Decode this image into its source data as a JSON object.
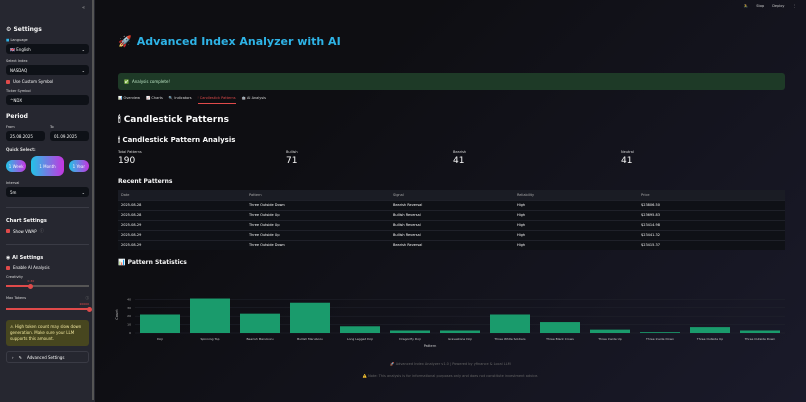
{
  "sidebar": {
    "settings_title": "Settings",
    "language_label": "Language",
    "language_value": "🇬🇧 English",
    "index_label": "Select Index",
    "index_value": "NASDAQ",
    "custom_symbol_label": "Use Custom Symbol",
    "ticker_label": "Ticker Symbol",
    "ticker_value": "^NDX",
    "period_title": "Period",
    "from_label": "From",
    "from_value": "25.08.2025",
    "to_label": "To",
    "to_value": "01.09.2025",
    "quick_select_label": "Quick Select:",
    "quick_buttons": [
      "1 Week",
      "1 Month",
      "1 Year"
    ],
    "interval_label": "Interval",
    "interval_value": "5m",
    "chart_settings_title": "Chart Settings",
    "show_vwap_label": "Show VWAP",
    "ai_settings_title": "AI Settings",
    "enable_ai_label": "Enable AI Analysis",
    "creativity_label": "Creativity",
    "creativity_value": "0.30",
    "creativity_fraction": 0.3,
    "max_tokens_label": "Max Tokens",
    "max_tokens_value": "20000",
    "max_tokens_fraction": 1.0,
    "warning_text": "High token count may slow down generation. Make sure your LLM supports this amount.",
    "advanced_settings_label": "Advanced Settings"
  },
  "topbar": {
    "stop_label": "Stop",
    "deploy_label": "Deploy"
  },
  "header": {
    "title": "Advanced Index Analyzer with AI"
  },
  "success_message": "Analysis complete!",
  "tabs": [
    {
      "label": "📊 Overview"
    },
    {
      "label": "📈 Charts"
    },
    {
      "label": "🔍 Indicators"
    },
    {
      "label": "🕯 Candlestick Patterns",
      "active": true
    },
    {
      "label": "🤖 AI Analysis"
    }
  ],
  "section_title": "Candlestick Patterns",
  "subsection_title": "Candlestick Pattern Analysis",
  "metrics": [
    {
      "label": "Total Patterns",
      "value": "190"
    },
    {
      "label": "Bullish",
      "value": "71"
    },
    {
      "label": "Bearish",
      "value": "41"
    },
    {
      "label": "Neutral",
      "value": "41"
    }
  ],
  "recent_title": "Recent Patterns",
  "table": {
    "headers": [
      "Date",
      "Pattern",
      "Signal",
      "Reliability",
      "Price"
    ],
    "rows": [
      [
        "2025-08-28",
        "Three Outside Down",
        "Bearish Reversal",
        "High",
        "$23806.50"
      ],
      [
        "2025-08-28",
        "Three Outside Up",
        "Bullish Reversal",
        "High",
        "$23695.83"
      ],
      [
        "2025-08-29",
        "Three Outside Up",
        "Bullish Reversal",
        "High",
        "$23414.98"
      ],
      [
        "2025-08-29",
        "Three Outside Up",
        "Bullish Reversal",
        "High",
        "$23441.32"
      ],
      [
        "2025-08-29",
        "Three Outside Down",
        "Bearish Reversal",
        "High",
        "$23415.37"
      ]
    ]
  },
  "stats_title": "Pattern Statistics",
  "chart_data": {
    "type": "bar",
    "categories": [
      "Doji",
      "Spinning Top",
      "Bearish Marubozu",
      "Bullish Marubozu",
      "Long Legged Doji",
      "Dragonfly Doji",
      "Gravestone Doji",
      "Three White Soldiers",
      "Three Black Crows",
      "Three Inside Up",
      "Three Inside Down",
      "Three Outside Up",
      "Three Outside Down"
    ],
    "values": [
      22,
      41,
      23,
      36,
      8,
      3,
      3,
      22,
      13,
      4,
      1,
      7,
      3
    ],
    "xlabel": "Pattern",
    "ylabel": "Count",
    "ylim": [
      0,
      44
    ],
    "yticks": [
      0,
      10,
      20,
      30,
      40
    ],
    "grid": true,
    "color": "#1a9b6c"
  },
  "footer": {
    "line1": "🚀 Advanced Index Analyzer v1.0 | Powered by yfinance & Local LLM",
    "line2": "⚠️ Note: This analysis is for informational purposes only and does not constitute investment advice."
  }
}
